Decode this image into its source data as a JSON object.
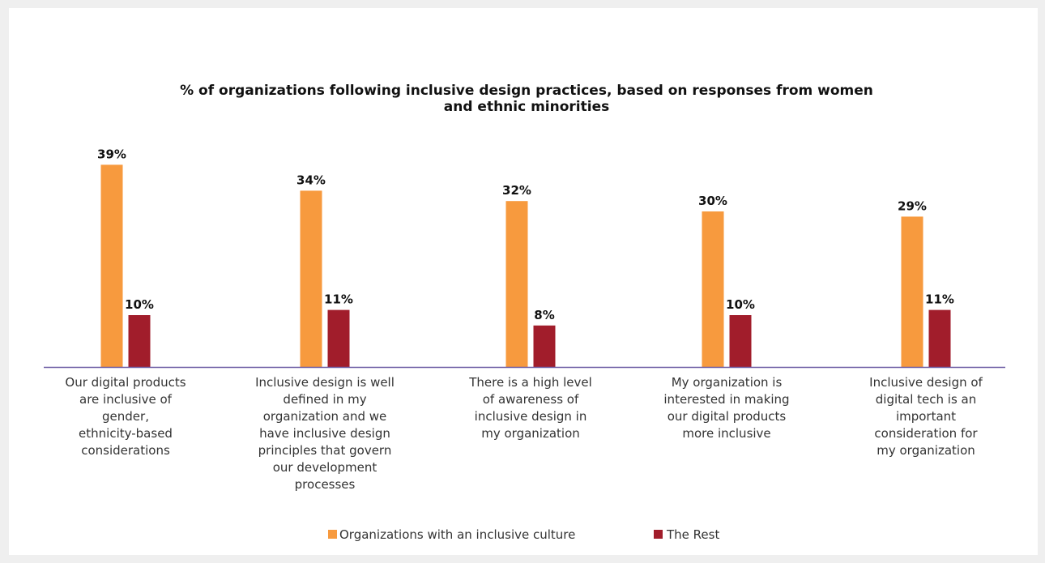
{
  "chart_data": {
    "type": "bar",
    "title": "% of organizations following inclusive design practices, based on responses from women and ethnic minorities",
    "title_lines": [
      "% of organizations following inclusive design practices, based on responses from women",
      "and ethnic minorities"
    ],
    "categories": [
      "Our digital products are inclusive of gender, ethnicity-based considerations",
      "Inclusive design is well defined in my organization and we have inclusive design principles that govern our development processes",
      "There is a high level of awareness of inclusive design in my organization",
      "My organization is interested in making our digital products more inclusive",
      "Inclusive design of digital tech is an important consideration for my organization"
    ],
    "category_lines": [
      [
        "Our digital products",
        "are inclusive of",
        "gender,",
        "ethnicity-based",
        "considerations"
      ],
      [
        "Inclusive design is well",
        "defined in my",
        "organization and we",
        "have inclusive design",
        "principles that govern",
        "our development",
        "processes"
      ],
      [
        "There is a high level",
        "of awareness of",
        "inclusive design in",
        "my organization"
      ],
      [
        "My organization is",
        "interested in making",
        "our digital products",
        "more inclusive"
      ],
      [
        "Inclusive design of",
        "digital tech is an",
        "important",
        "consideration for",
        "my organization"
      ]
    ],
    "series": [
      {
        "name": "Organizations with an inclusive culture",
        "color": "#f79a3e",
        "values": [
          39,
          34,
          32,
          30,
          29
        ],
        "labels": [
          "39%",
          "34%",
          "32%",
          "30%",
          "29%"
        ]
      },
      {
        "name": "The Rest",
        "color": "#a11d2b",
        "values": [
          10,
          11,
          8,
          10,
          11
        ],
        "labels": [
          "10%",
          "11%",
          "8%",
          "10%",
          "11%"
        ]
      }
    ],
    "ylim": [
      0,
      40
    ],
    "grid": false,
    "legend": "bottom-center",
    "axis_color": "#6b5ba3"
  }
}
